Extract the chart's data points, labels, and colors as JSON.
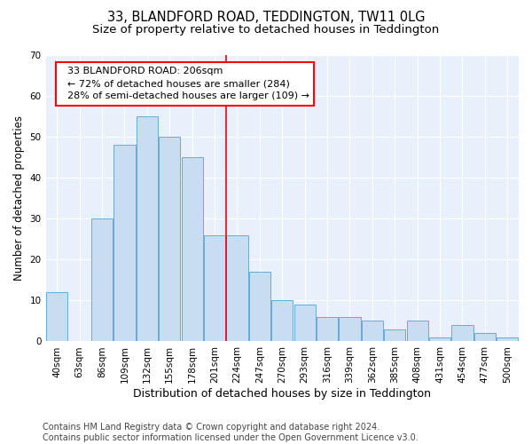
{
  "title": "33, BLANDFORD ROAD, TEDDINGTON, TW11 0LG",
  "subtitle": "Size of property relative to detached houses in Teddington",
  "xlabel": "Distribution of detached houses by size in Teddington",
  "ylabel": "Number of detached properties",
  "bar_color": "#c8ddf0",
  "bar_edge_color": "#6aaad4",
  "background_color": "#e8f1fb",
  "ylim": [
    0,
    70
  ],
  "yticks": [
    0,
    10,
    20,
    30,
    40,
    50,
    60,
    70
  ],
  "categories": [
    "40sqm",
    "63sqm",
    "86sqm",
    "109sqm",
    "132sqm",
    "155sqm",
    "178sqm",
    "201sqm",
    "224sqm",
    "247sqm",
    "270sqm",
    "293sqm",
    "316sqm",
    "339sqm",
    "362sqm",
    "385sqm",
    "408sqm",
    "431sqm",
    "454sqm",
    "477sqm",
    "500sqm"
  ],
  "values": [
    12,
    0,
    30,
    48,
    55,
    50,
    45,
    26,
    26,
    17,
    10,
    9,
    6,
    6,
    5,
    3,
    5,
    1,
    4,
    2,
    1
  ],
  "vline_index": 7,
  "annotation_text": "  33 BLANDFORD ROAD: 206sqm\n  ← 72% of detached houses are smaller (284)\n  28% of semi-detached houses are larger (109) →",
  "annotation_box_color": "white",
  "annotation_box_edge_color": "red",
  "vline_color": "red",
  "footnote": "Contains HM Land Registry data © Crown copyright and database right 2024.\nContains public sector information licensed under the Open Government Licence v3.0.",
  "footnote_fontsize": 7,
  "title_fontsize": 10.5,
  "subtitle_fontsize": 9.5,
  "xlabel_fontsize": 9,
  "ylabel_fontsize": 8.5,
  "tick_fontsize": 7.5,
  "annotation_fontsize": 8
}
